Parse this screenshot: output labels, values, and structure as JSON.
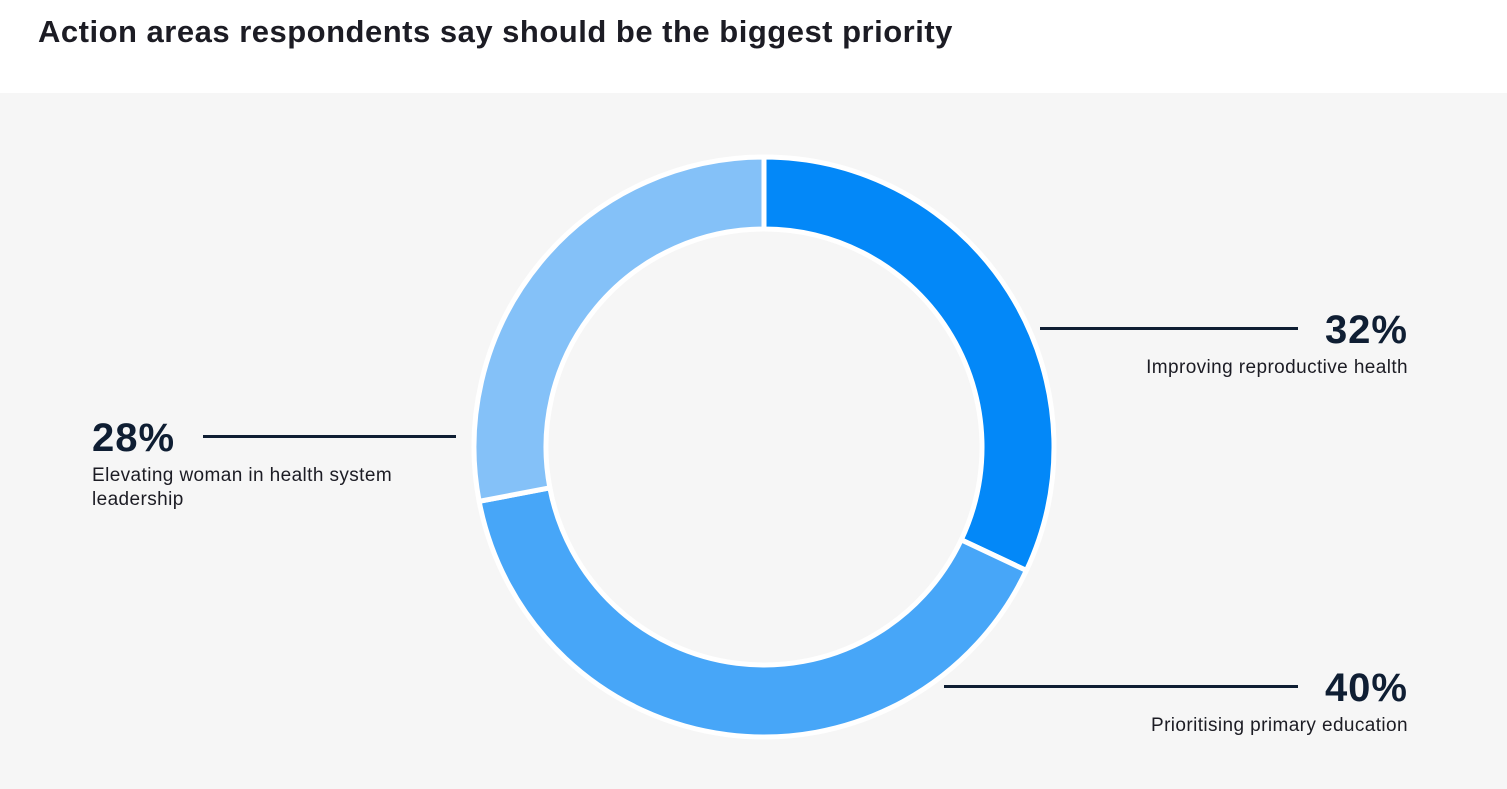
{
  "title": "Action areas respondents say should be the biggest priority",
  "chart_data": {
    "type": "pie",
    "variant": "donut",
    "slices": [
      {
        "label": "Improving reproductive health",
        "value": 32,
        "value_label": "32%",
        "color": "#0388f8"
      },
      {
        "label": "Prioritising primary education",
        "value": 40,
        "value_label": "40%",
        "color": "#47a6f8"
      },
      {
        "label": "Elevating woman in health system leadership",
        "value": 28,
        "value_label": "28%",
        "color": "#84c1f8"
      }
    ],
    "start": "top",
    "direction": "clockwise",
    "background": "#f6f6f6"
  }
}
